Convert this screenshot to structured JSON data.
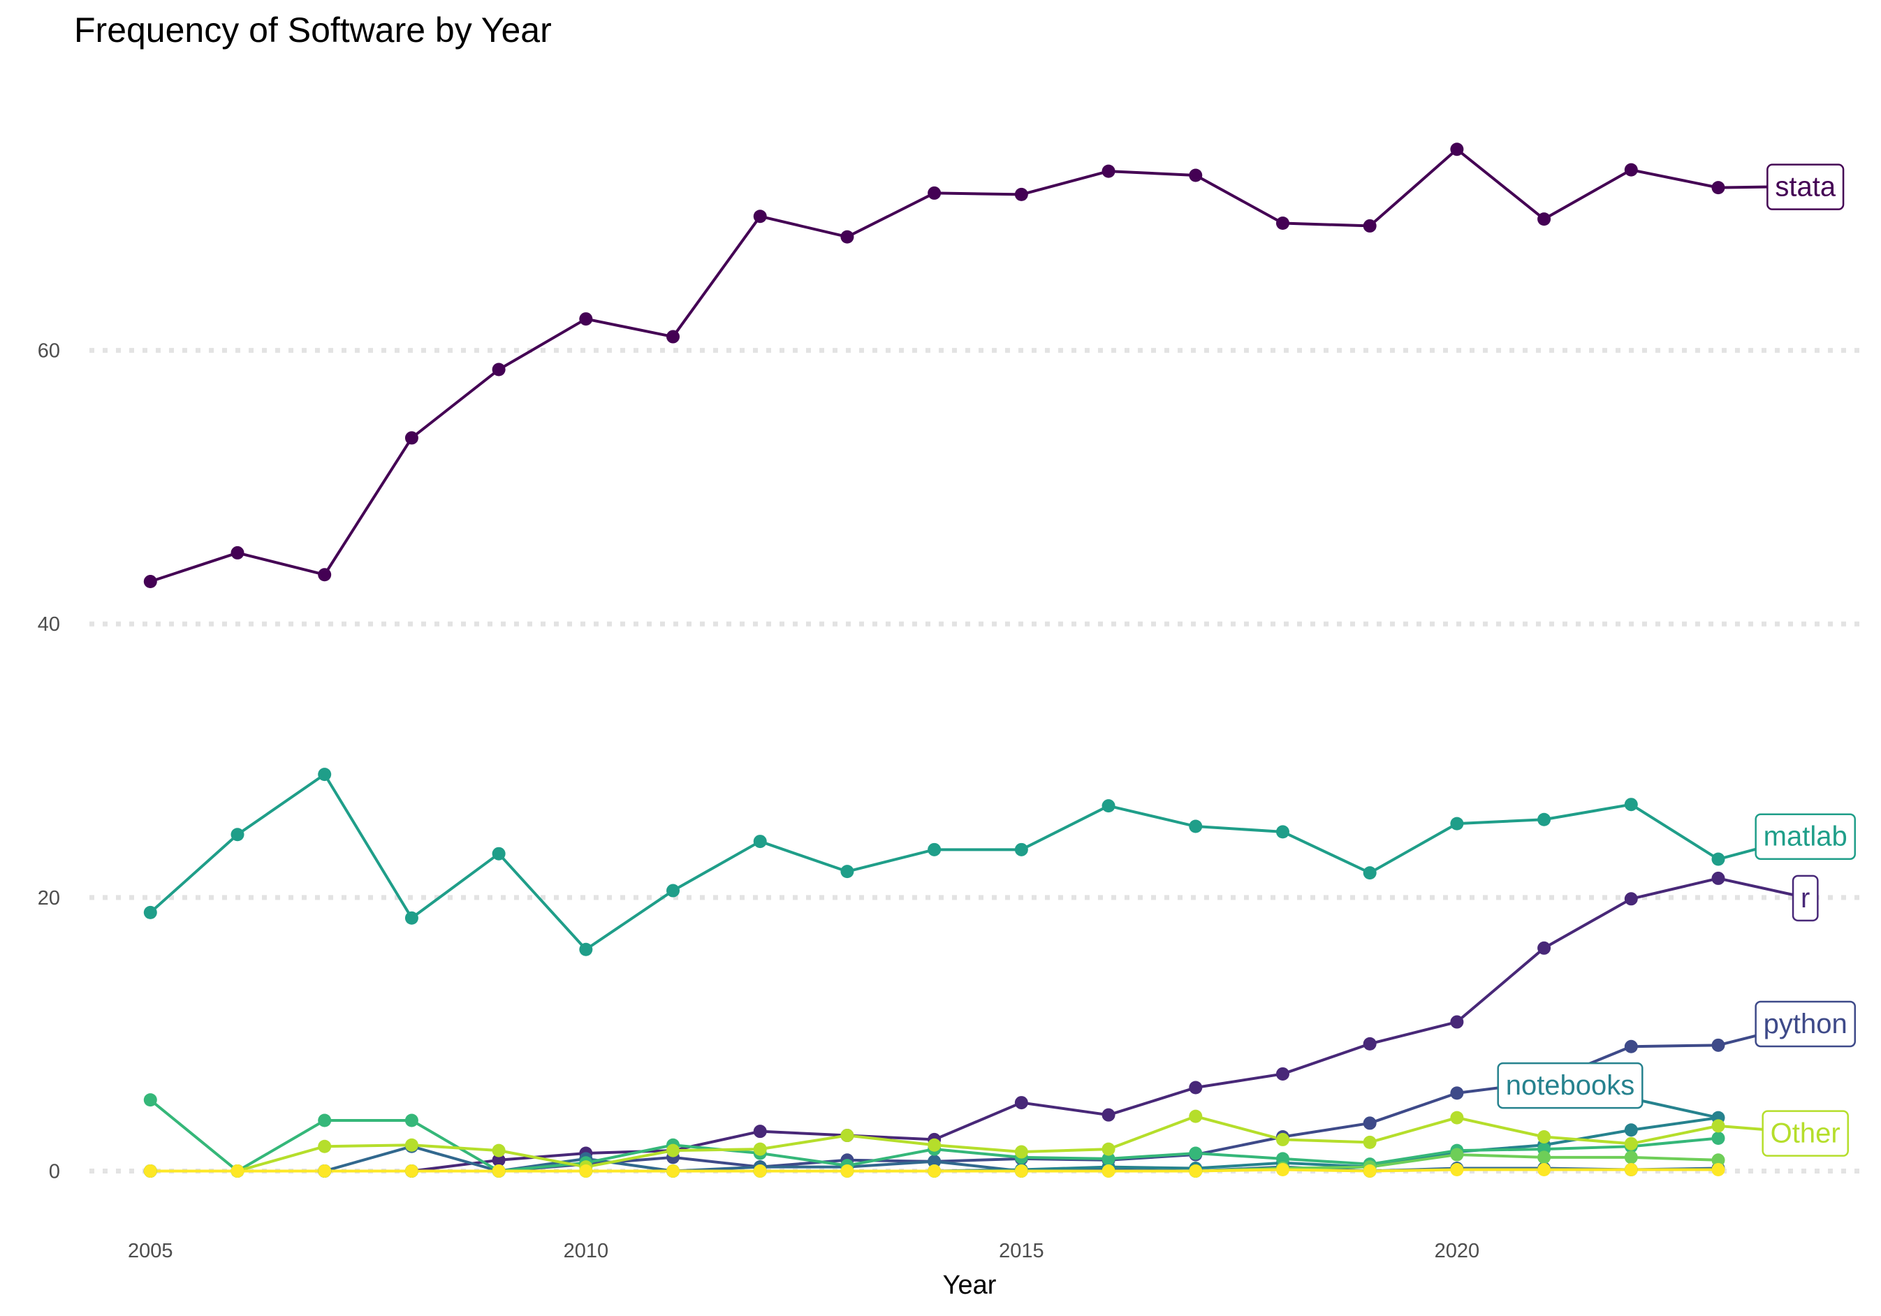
{
  "chart_data": {
    "type": "line",
    "title": "Frequency of Software by Year",
    "xlabel": "Year",
    "ylabel": "",
    "xlim": [
      2004.3,
      2024.7
    ],
    "ylim": [
      -3.5,
      80
    ],
    "x_ticks": [
      2005,
      2010,
      2015,
      2020
    ],
    "y_ticks": [
      0,
      20,
      40,
      60
    ],
    "grid": "horizontal dotted",
    "legend": "direct labels at line ends",
    "x": [
      2005,
      2006,
      2007,
      2008,
      2009,
      2010,
      2011,
      2012,
      2013,
      2014,
      2015,
      2016,
      2017,
      2018,
      2019,
      2020,
      2021,
      2022,
      2023
    ],
    "series": [
      {
        "name": "stata",
        "color": "#440154",
        "label_x": 2024,
        "label_y": 72.0,
        "values": [
          43.1,
          45.2,
          43.6,
          53.6,
          58.6,
          62.3,
          61.0,
          69.8,
          68.3,
          71.5,
          71.4,
          73.1,
          72.8,
          69.3,
          69.1,
          74.7,
          69.6,
          73.2,
          71.9
        ]
      },
      {
        "name": "r",
        "color": "#482878",
        "label_x": 2024,
        "label_y": 20.0,
        "values": [
          0,
          0,
          0,
          0,
          0.8,
          1.3,
          1.5,
          2.9,
          2.6,
          2.3,
          5.0,
          4.1,
          6.1,
          7.1,
          9.3,
          10.9,
          16.3,
          19.9,
          21.4
        ]
      },
      {
        "name": "python",
        "color": "#3e4a89",
        "label_x": 2024,
        "label_y": 10.8,
        "values": [
          0,
          0,
          0,
          0,
          0,
          0.5,
          1.0,
          0.3,
          0.8,
          0.7,
          0.9,
          0.8,
          1.2,
          2.5,
          3.5,
          5.7,
          6.5,
          9.1,
          9.2
        ]
      },
      {
        "name": "",
        "color": "#31688e",
        "values": [
          0,
          0,
          0,
          1.8,
          0,
          0.9,
          0,
          0.3,
          0.3,
          0.7,
          0,
          0.1,
          0,
          0.3,
          0,
          0.2,
          0.2,
          0.1,
          0.2
        ]
      },
      {
        "name": "notebooks",
        "color": "#26828e",
        "label_x": 2021.3,
        "label_y": 6.3,
        "values": [
          0,
          0,
          0,
          0,
          0,
          0,
          0,
          0,
          0,
          0,
          0.1,
          0.3,
          0.2,
          0.6,
          0.3,
          1.4,
          1.9,
          3.0,
          3.9
        ]
      },
      {
        "name": "matlab",
        "color": "#1f9e89",
        "label_x": 2024,
        "label_y": 24.5,
        "values": [
          18.9,
          24.6,
          29.0,
          18.5,
          23.2,
          16.2,
          20.5,
          24.1,
          21.9,
          23.5,
          23.5,
          26.7,
          25.2,
          24.8,
          21.8,
          25.4,
          25.7,
          26.8,
          22.8
        ]
      },
      {
        "name": "",
        "color": "#35b779",
        "values": [
          5.2,
          0,
          3.7,
          3.7,
          0,
          0.6,
          1.9,
          1.3,
          0.4,
          1.6,
          1.0,
          0.9,
          1.3,
          0.9,
          0.5,
          1.5,
          1.6,
          1.8,
          2.4
        ]
      },
      {
        "name": "",
        "color": "#6ece58",
        "values": [
          0,
          0,
          0,
          0,
          0,
          0,
          0,
          0,
          0,
          0,
          0,
          0,
          0,
          0.2,
          0.3,
          1.2,
          1.0,
          1.0,
          0.8
        ]
      },
      {
        "name": "Other",
        "color": "#b5de2b",
        "label_x": 2024,
        "label_y": 2.8,
        "values": [
          0,
          0,
          1.8,
          1.9,
          1.5,
          0.3,
          1.5,
          1.6,
          2.6,
          1.9,
          1.4,
          1.6,
          4.0,
          2.3,
          2.1,
          3.9,
          2.5,
          2.0,
          3.3
        ]
      },
      {
        "name": "",
        "color": "#fde725",
        "values": [
          0,
          0,
          0,
          0,
          0,
          0,
          0,
          0,
          0,
          0,
          0,
          0,
          0,
          0.1,
          0,
          0.1,
          0.1,
          0.1,
          0.1
        ]
      }
    ]
  }
}
